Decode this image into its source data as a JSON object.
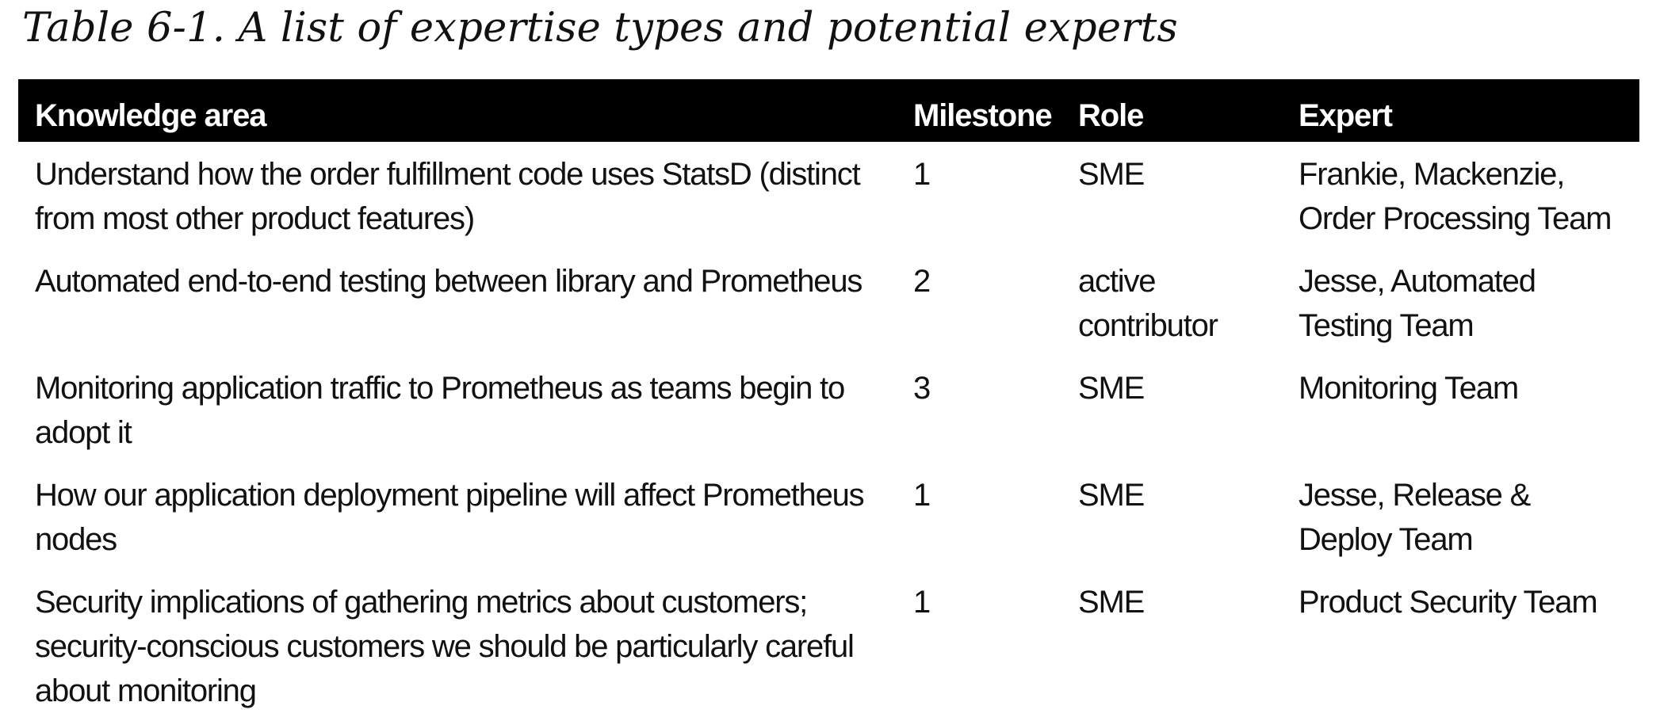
{
  "caption": "Table 6-1. A list of expertise types and potential experts",
  "table": {
    "headers": [
      "Knowledge area",
      "Milestone",
      "Role",
      "Expert"
    ],
    "rows": [
      {
        "knowledge_area": "Understand how the order fulfillment code uses StatsD (distinct from most other product features)",
        "milestone": "1",
        "role": "SME",
        "expert": "Frankie, Mackenzie, Order Processing Team"
      },
      {
        "knowledge_area": "Automated end-to-end testing between library and Prometheus",
        "milestone": "2",
        "role": "active contributor",
        "expert": "Jesse, Automated Testing Team"
      },
      {
        "knowledge_area": "Monitoring application traffic to Prometheus as teams begin to adopt it",
        "milestone": "3",
        "role": "SME",
        "expert": "Monitoring Team"
      },
      {
        "knowledge_area": "How our application deployment pipeline will affect Prometheus nodes",
        "milestone": "1",
        "role": "SME",
        "expert": "Jesse, Release & Deploy Team"
      },
      {
        "knowledge_area": "Security implications of gathering metrics about customers; security-conscious customers we should be particularly careful about monitoring",
        "milestone": "1",
        "role": "SME",
        "expert": "Product Security Team"
      }
    ]
  }
}
